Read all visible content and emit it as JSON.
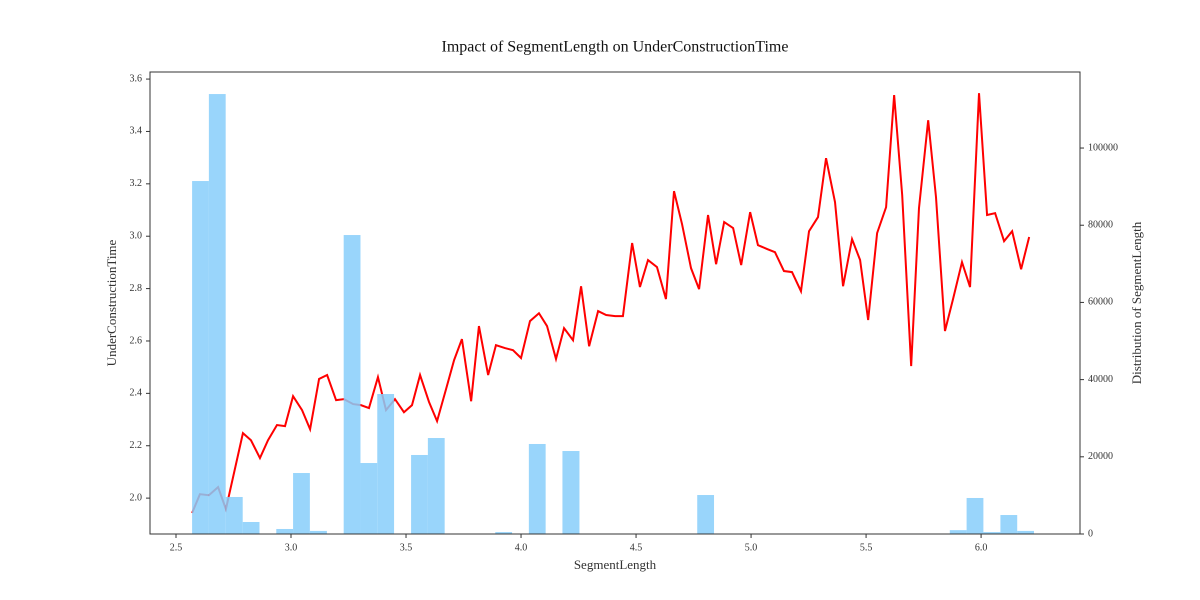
{
  "chart_data": {
    "type": "combo",
    "title": "Impact of SegmentLength on UnderConstructionTime",
    "x_label": "SegmentLength",
    "y_label": "UnderConstructionTime",
    "y2_label": "Distribution of SegmentLength",
    "xlim": [
      2.387,
      6.43
    ],
    "xticks": [
      2.5,
      {
        "value": 3,
        "label": "3.0"
      },
      3.5,
      {
        "value": 4,
        "label": "4.0"
      },
      4.5,
      {
        "value": 5,
        "label": "5.0"
      },
      5.5,
      {
        "value": 6,
        "label": "6.0"
      }
    ],
    "ylim": [
      1.863,
      3.627
    ],
    "yticks": [
      {
        "value": 2,
        "label": "2.0"
      },
      2.2,
      2.4,
      2.6,
      2.8,
      {
        "value": 3,
        "label": "3.0"
      },
      3.2,
      3.4,
      3.6
    ],
    "y2lim": [
      0,
      119700
    ],
    "y2ticks": [
      0,
      20000,
      40000,
      60000,
      80000,
      100000
    ],
    "series": [
      {
        "type": "line",
        "color": "#ff0000",
        "x": [
          2.57,
          2.604,
          2.643,
          2.683,
          2.717,
          2.791,
          2.826,
          2.865,
          2.9,
          2.939,
          2.974,
          3.009,
          3.048,
          3.083,
          3.122,
          3.157,
          3.196,
          3.23,
          3.27,
          3.304,
          3.339,
          3.378,
          3.413,
          3.452,
          3.491,
          3.526,
          3.561,
          3.6,
          3.635,
          3.674,
          3.709,
          3.743,
          3.783,
          3.817,
          3.857,
          3.891,
          3.93,
          3.965,
          4.0,
          4.039,
          4.078,
          4.113,
          4.152,
          4.187,
          4.226,
          4.261,
          4.296,
          4.335,
          4.37,
          4.409,
          4.443,
          4.483,
          4.517,
          4.552,
          4.591,
          4.63,
          4.665,
          4.7,
          4.739,
          4.774,
          4.813,
          4.848,
          4.883,
          4.922,
          4.957,
          4.996,
          5.03,
          5.07,
          5.104,
          5.143,
          5.178,
          5.217,
          5.252,
          5.291,
          5.326,
          5.365,
          5.4,
          5.439,
          5.474,
          5.509,
          5.548,
          5.587,
          5.622,
          5.657,
          5.696,
          5.73,
          5.77,
          5.804,
          5.843,
          5.878,
          5.917,
          5.952,
          5.991,
          6.026,
          6.061,
          6.1,
          6.135,
          6.174,
          6.209
        ],
        "values": [
          1.943,
          2.015,
          2.011,
          2.042,
          1.958,
          2.248,
          2.221,
          2.153,
          2.221,
          2.279,
          2.275,
          2.389,
          2.336,
          2.263,
          2.455,
          2.47,
          2.374,
          2.378,
          2.359,
          2.355,
          2.344,
          2.462,
          2.336,
          2.378,
          2.328,
          2.355,
          2.47,
          2.367,
          2.294,
          2.416,
          2.527,
          2.607,
          2.37,
          2.657,
          2.47,
          2.584,
          2.573,
          2.565,
          2.535,
          2.676,
          2.706,
          2.657,
          2.531,
          2.649,
          2.603,
          2.809,
          2.58,
          2.714,
          2.699,
          2.695,
          2.695,
          2.974,
          2.806,
          2.909,
          2.882,
          2.76,
          3.172,
          3.046,
          2.878,
          2.798,
          3.081,
          2.893,
          3.054,
          3.031,
          2.89,
          3.092,
          2.966,
          2.951,
          2.939,
          2.867,
          2.863,
          2.79,
          3.019,
          3.073,
          3.298,
          3.13,
          2.809,
          2.989,
          2.909,
          2.68,
          3.012,
          3.111,
          3.539,
          3.157,
          2.504,
          3.107,
          3.443,
          3.149,
          2.638,
          2.76,
          2.901,
          2.806,
          3.546,
          3.081,
          3.088,
          2.981,
          3.019,
          2.874,
          2.997
        ]
      },
      {
        "type": "histogram",
        "axis": "y2",
        "color": "#87cefa",
        "bins": [
          2.57,
          2.643,
          2.716,
          2.79,
          2.863,
          2.936,
          3.009,
          3.082,
          3.156,
          3.229,
          3.302,
          3.375,
          3.448,
          3.522,
          3.595,
          3.668,
          3.741,
          3.814,
          3.888,
          3.961,
          4.034,
          4.107,
          4.18,
          4.254,
          4.327,
          4.4,
          4.473,
          4.546,
          4.62,
          4.693,
          4.766,
          4.839,
          4.912,
          4.986,
          5.059,
          5.132,
          5.205,
          5.278,
          5.352,
          5.425,
          5.498,
          5.571,
          5.644,
          5.718,
          5.791,
          5.864,
          5.937,
          6.01,
          6.084,
          6.157,
          6.23
        ],
        "values": [
          91450,
          113990,
          9590,
          3110,
          0,
          1300,
          15800,
          800,
          0,
          77460,
          18390,
          36270,
          0,
          20470,
          24870,
          0,
          0,
          0,
          500,
          0,
          23320,
          0,
          21500,
          0,
          0,
          0,
          0,
          0,
          0,
          0,
          10100,
          0,
          0,
          0,
          0,
          0,
          0,
          0,
          0,
          0,
          0,
          0,
          0,
          0,
          0,
          1000,
          9330,
          500,
          4920,
          800
        ]
      }
    ]
  }
}
